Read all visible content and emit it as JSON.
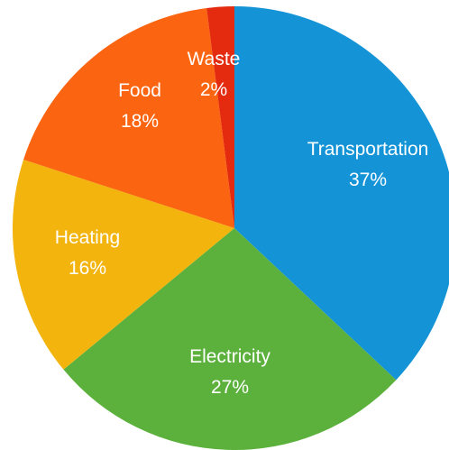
{
  "chart_data": {
    "type": "pie",
    "title": "",
    "start_angle_deg": 0,
    "direction": "clockwise",
    "slices": [
      {
        "label": "Transportation",
        "value": 37,
        "value_label": "37%",
        "color": "#1494d6"
      },
      {
        "label": "Electricity",
        "value": 27,
        "value_label": "27%",
        "color": "#5cb13d"
      },
      {
        "label": "Heating",
        "value": 16,
        "value_label": "16%",
        "color": "#f2b40d"
      },
      {
        "label": "Food",
        "value": 18,
        "value_label": "18%",
        "color": "#fb6410"
      },
      {
        "label": "Waste",
        "value": 2,
        "value_label": "2%",
        "color": "#e42b10"
      }
    ]
  }
}
